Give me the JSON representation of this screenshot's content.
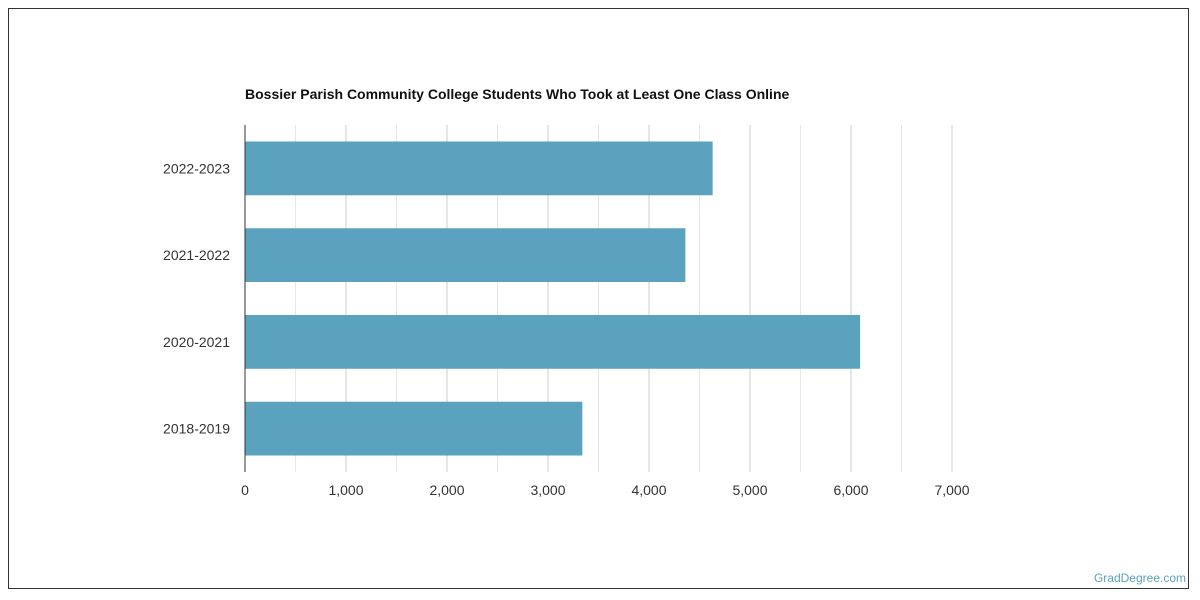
{
  "chart_data": {
    "type": "bar",
    "orientation": "horizontal",
    "title": "Bossier Parish Community College Students Who Took at Least One Class Online",
    "categories": [
      "2022-2023",
      "2021-2022",
      "2020-2021",
      "2018-2019"
    ],
    "values": [
      4630,
      4360,
      6090,
      3340
    ],
    "xlim": [
      0,
      7000
    ],
    "x_ticks": [
      0,
      1000,
      2000,
      3000,
      4000,
      5000,
      6000,
      7000
    ],
    "x_tick_labels": [
      "0",
      "1,000",
      "2,000",
      "3,000",
      "4,000",
      "5,000",
      "6,000",
      "7,000"
    ],
    "grid": true,
    "bar_color": "#5ba2bf"
  },
  "watermark": "GradDegree.com"
}
